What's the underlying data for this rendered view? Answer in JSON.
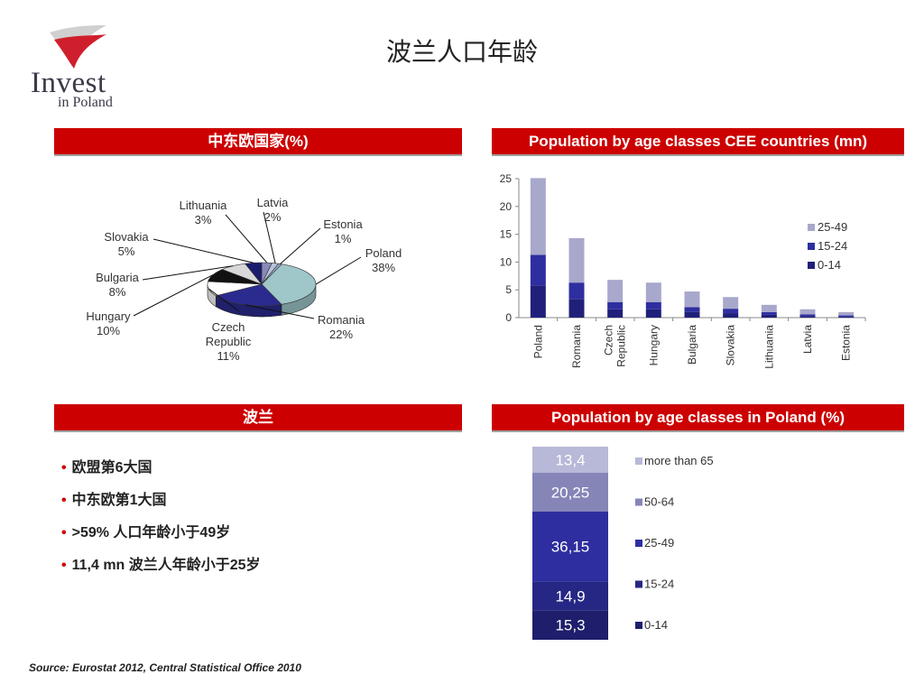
{
  "logo": {
    "word": "Invest",
    "sub": "in Poland"
  },
  "title": "波兰人口年龄",
  "headers": {
    "cee_share": "中东欧国家(%)",
    "cee_population": "Population by age classes CEE countries (mn)",
    "poland": "波兰",
    "poland_population": "Population by age classes in Poland (%)"
  },
  "bullets": [
    "欧盟第6大国",
    "中东欧第1大国",
    ">59% 人口年龄小于49岁",
    "11,4 mn 波兰人年龄小于25岁"
  ],
  "source": "Source: Eurostat 2012, Central Statistical Office 2010",
  "colors": {
    "accent": "#cc0000",
    "c2549": "#a8a8cc",
    "c1524": "#2e2ea0",
    "c014": "#20207a"
  },
  "chart_data": [
    {
      "type": "pie",
      "title": "中东欧国家(%)",
      "slices": [
        {
          "label": "Poland",
          "value": 38,
          "display": "38%",
          "color": "#9fc6c8"
        },
        {
          "label": "Romania",
          "value": 22,
          "display": "22%",
          "color": "#2b2b8f"
        },
        {
          "label": "Czech Republic",
          "value": 11,
          "display": "11%",
          "color": "#ffffff"
        },
        {
          "label": "Hungary",
          "value": 10,
          "display": "10%",
          "color": "#111111"
        },
        {
          "label": "Bulgaria",
          "value": 8,
          "display": "8%",
          "color": "#d8d8d8"
        },
        {
          "label": "Slovakia",
          "value": 5,
          "display": "5%",
          "color": "#1c1c6e"
        },
        {
          "label": "Lithuania",
          "value": 3,
          "display": "3%",
          "color": "#8a8ab8"
        },
        {
          "label": "Latvia",
          "value": 2,
          "display": "2%",
          "color": "#b8c4dc"
        },
        {
          "label": "Estonia",
          "value": 1,
          "display": "1%",
          "color": "#9aa8c8"
        }
      ]
    },
    {
      "type": "bar",
      "stacked": true,
      "title": "Population by age classes CEE countries (mn)",
      "categories": [
        "Poland",
        "Romania",
        "Czech Republic",
        "Hungary",
        "Bulgaria",
        "Slovakia",
        "Lithuania",
        "Latvia",
        "Estonia"
      ],
      "series": [
        {
          "name": "0-14",
          "color": "#20207a",
          "values": [
            5.8,
            3.3,
            1.5,
            1.5,
            1.0,
            0.8,
            0.5,
            0.3,
            0.2
          ]
        },
        {
          "name": "15-24",
          "color": "#2e2ea0",
          "values": [
            5.5,
            3.0,
            1.3,
            1.3,
            0.9,
            0.8,
            0.5,
            0.3,
            0.2
          ]
        },
        {
          "name": "25-49",
          "color": "#a8a8cc",
          "values": [
            13.8,
            8.0,
            4.0,
            3.5,
            2.8,
            2.1,
            1.3,
            0.9,
            0.6
          ]
        }
      ],
      "yticks": [
        "0",
        "5",
        "10",
        "15",
        "20",
        "25"
      ],
      "ylim": [
        0,
        25
      ],
      "legend": "right"
    },
    {
      "type": "bar",
      "stacked": true,
      "title": "Population by age classes in Poland (%)",
      "segments": [
        {
          "name": "0-14",
          "value": 15.3,
          "display": "15,3",
          "color": "#1e1e6c"
        },
        {
          "name": "15-24",
          "value": 14.9,
          "display": "14,9",
          "color": "#262684"
        },
        {
          "name": "25-49",
          "value": 36.15,
          "display": "36,15",
          "color": "#2e2ea0"
        },
        {
          "name": "50-64",
          "value": 20.25,
          "display": "20,25",
          "color": "#8585b8"
        },
        {
          "name": "more than 65",
          "value": 13.4,
          "display": "13,4",
          "color": "#b8b8d8"
        }
      ],
      "legend": "right"
    }
  ]
}
